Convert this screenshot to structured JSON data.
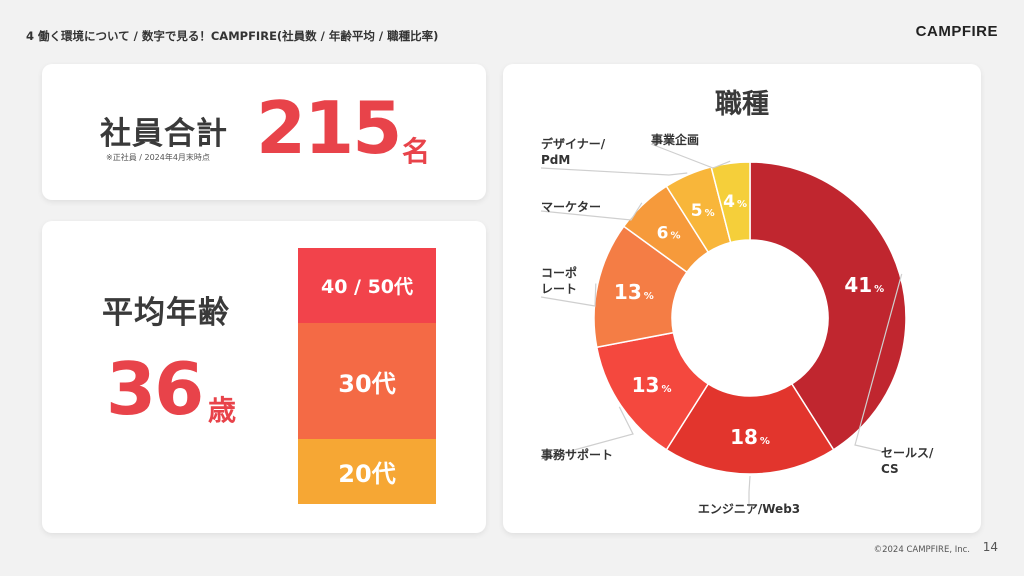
{
  "header": {
    "breadcrumb": "4  働く環境について /  数字で見る！CAMPFIRE(社員数 / 年齢平均 / 職種比率)",
    "logo": "CAMPFIRE"
  },
  "total": {
    "label": "社員合計",
    "note": "※正社員 / 2024年4月末時点",
    "value": "215",
    "unit": "名"
  },
  "age": {
    "label": "平均年齢",
    "value": "36",
    "unit": "歳",
    "bars": [
      {
        "label": "40 / 50代",
        "color": "#f2434b"
      },
      {
        "label": "30代",
        "color": "#f46a45"
      },
      {
        "label": "20代",
        "color": "#f6a734"
      }
    ]
  },
  "job": {
    "title": "職種"
  },
  "chart_data": {
    "type": "pie",
    "title": "職種",
    "unit": "%",
    "categories": [
      "セールス/CS",
      "エンジニア/Web3",
      "事務サポート",
      "コーポレート",
      "マーケター",
      "デザイナー/PdM",
      "事業企画"
    ],
    "values": [
      41,
      18,
      13,
      13,
      6,
      5,
      4
    ],
    "colors": [
      "#c0262f",
      "#e2352d",
      "#f4483e",
      "#f47d45",
      "#f69a3b",
      "#f8b63a",
      "#f5cf3a"
    ],
    "labels": [
      [
        "セールス/",
        "CS"
      ],
      [
        "エンジニア/Web3"
      ],
      [
        "事務サポート"
      ],
      [
        "コーポ",
        "レート"
      ],
      [
        "マーケター"
      ],
      [
        "デザイナー/",
        "PdM"
      ],
      [
        "事業企画"
      ]
    ]
  },
  "footer": {
    "copyright": "©2024 CAMPFIRE, Inc.",
    "page": "14"
  }
}
